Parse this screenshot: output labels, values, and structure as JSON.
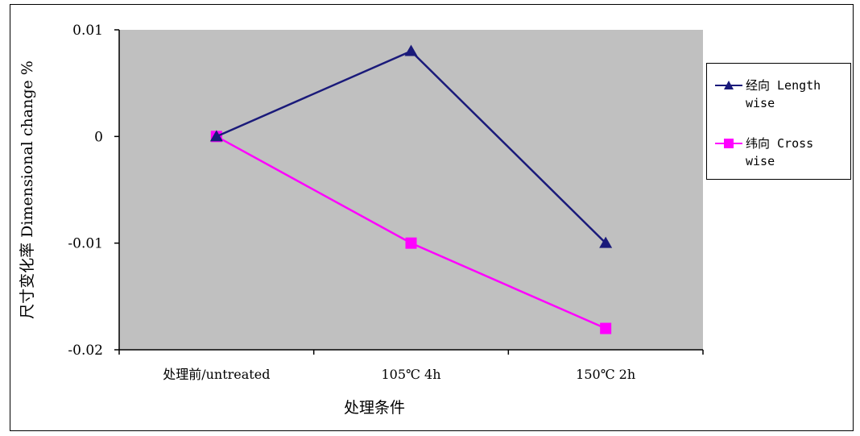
{
  "chart_data": {
    "type": "line",
    "categories": [
      "处理前/untreated",
      "105℃ 4h",
      "150℃ 2h"
    ],
    "series": [
      {
        "name": "经向 Length wise",
        "color": "#1a1a7a",
        "marker": "triangle",
        "values": [
          0,
          0.008,
          -0.01
        ]
      },
      {
        "name": "纬向 Cross wise",
        "color": "#ff00ff",
        "marker": "square",
        "values": [
          0,
          -0.01,
          -0.018
        ]
      }
    ],
    "xlabel": "处理条件",
    "ylabel": "尺寸变化率 Dimensional change %",
    "ylim": [
      -0.02,
      0.01
    ],
    "yticks": [
      "0.01",
      "0",
      "-0.01",
      "-0.02"
    ],
    "ytick_values": [
      0.01,
      0,
      -0.01,
      -0.02
    ],
    "plot_background": "#c0c0c0",
    "legend_position": "right"
  }
}
